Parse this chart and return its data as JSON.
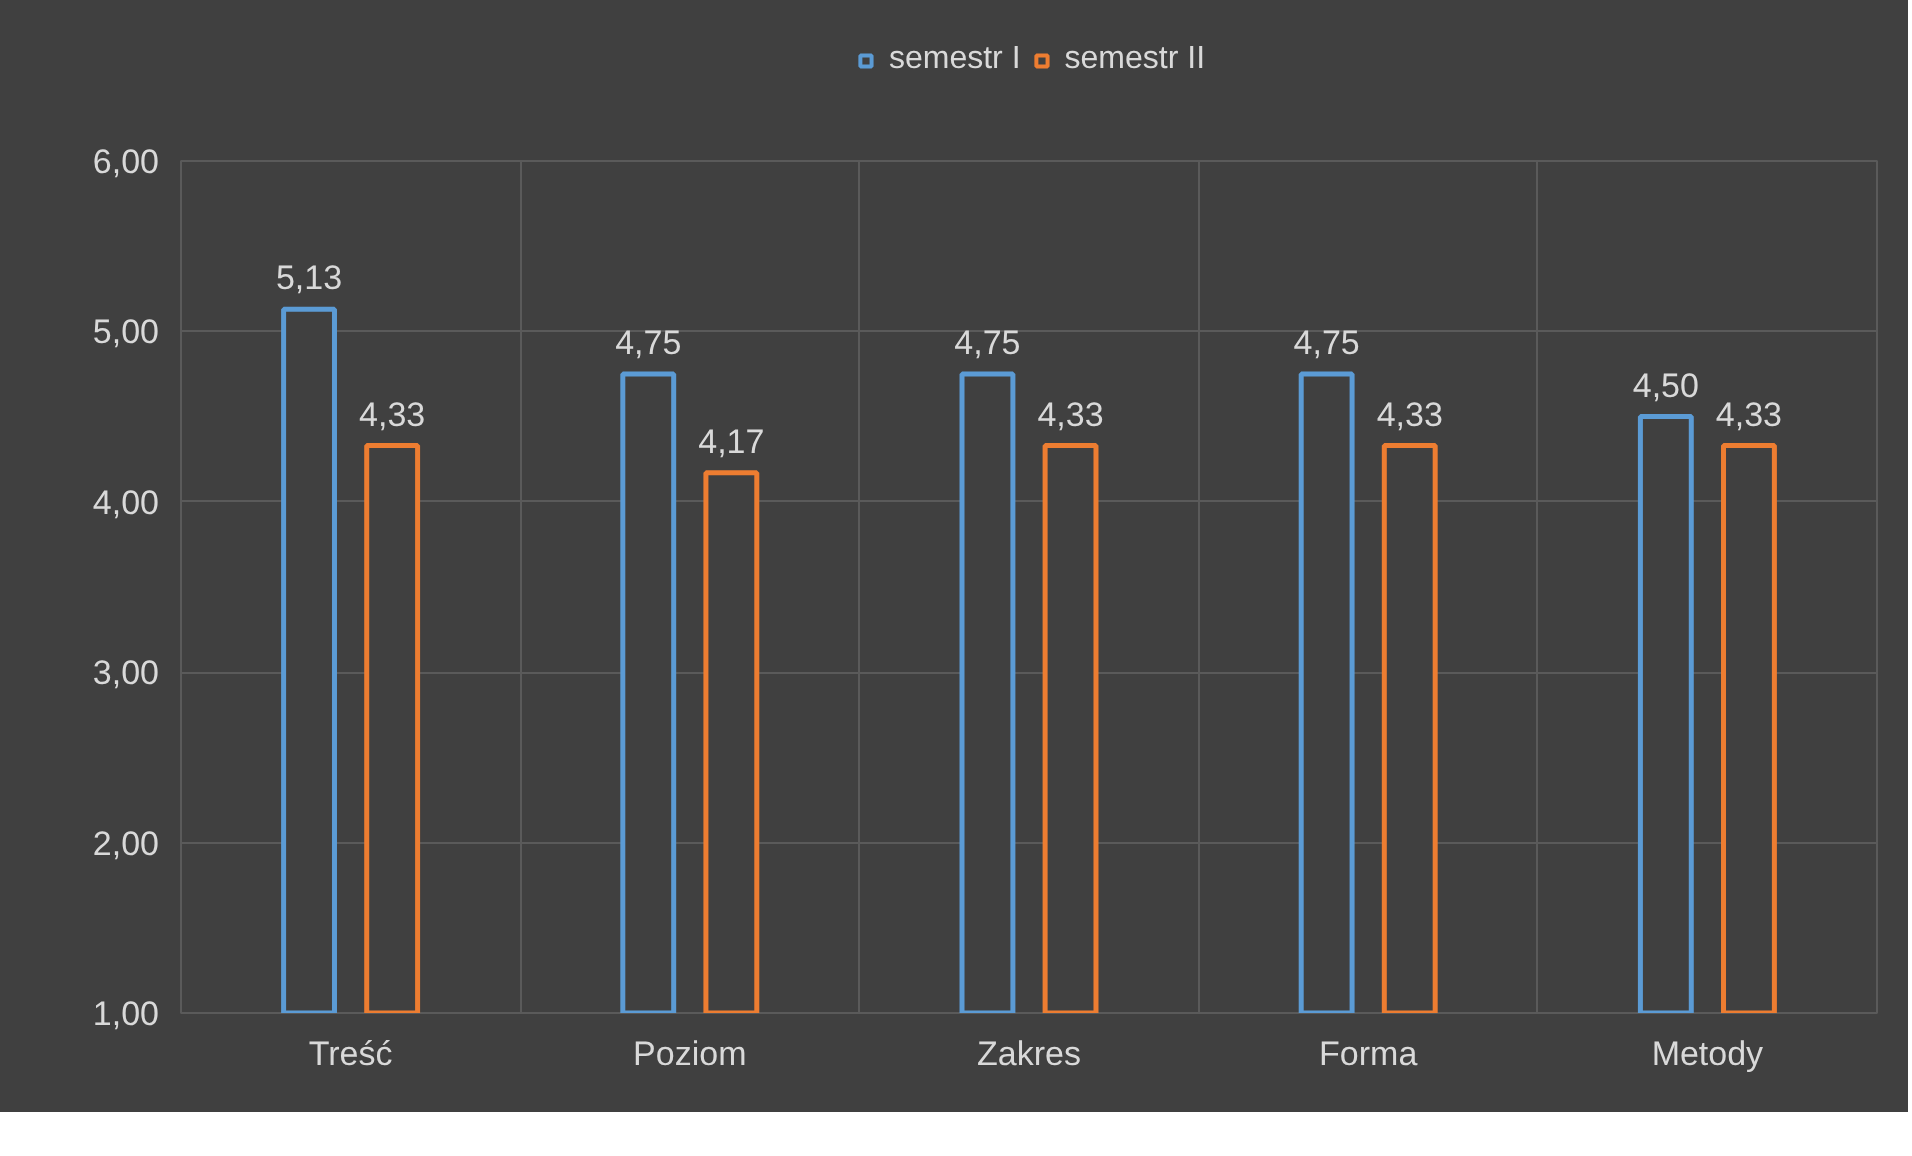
{
  "chart_data": {
    "type": "bar",
    "categories": [
      "Treść",
      "Poziom",
      "Zakres",
      "Forma",
      "Metody"
    ],
    "series": [
      {
        "name": "semestr I",
        "color": "#5b9bd5",
        "values": [
          5.13,
          4.75,
          4.75,
          4.75,
          4.5
        ],
        "value_labels": [
          "5,13",
          "4,75",
          "4,75",
          "4,75",
          "4,50"
        ]
      },
      {
        "name": "semestr II",
        "color": "#ed7d31",
        "values": [
          4.33,
          4.17,
          4.33,
          4.33,
          4.33
        ],
        "value_labels": [
          "4,33",
          "4,17",
          "4,33",
          "4,33",
          "4,33"
        ]
      }
    ],
    "ylim": [
      1,
      6
    ],
    "yticks": [
      {
        "value": 1,
        "label": "1,00"
      },
      {
        "value": 2,
        "label": "2,00"
      },
      {
        "value": 3,
        "label": "3,00"
      },
      {
        "value": 4,
        "label": "4,00"
      },
      {
        "value": 5,
        "label": "5,00"
      },
      {
        "value": 6,
        "label": "6,00"
      }
    ],
    "grid": true,
    "legend": "top"
  }
}
